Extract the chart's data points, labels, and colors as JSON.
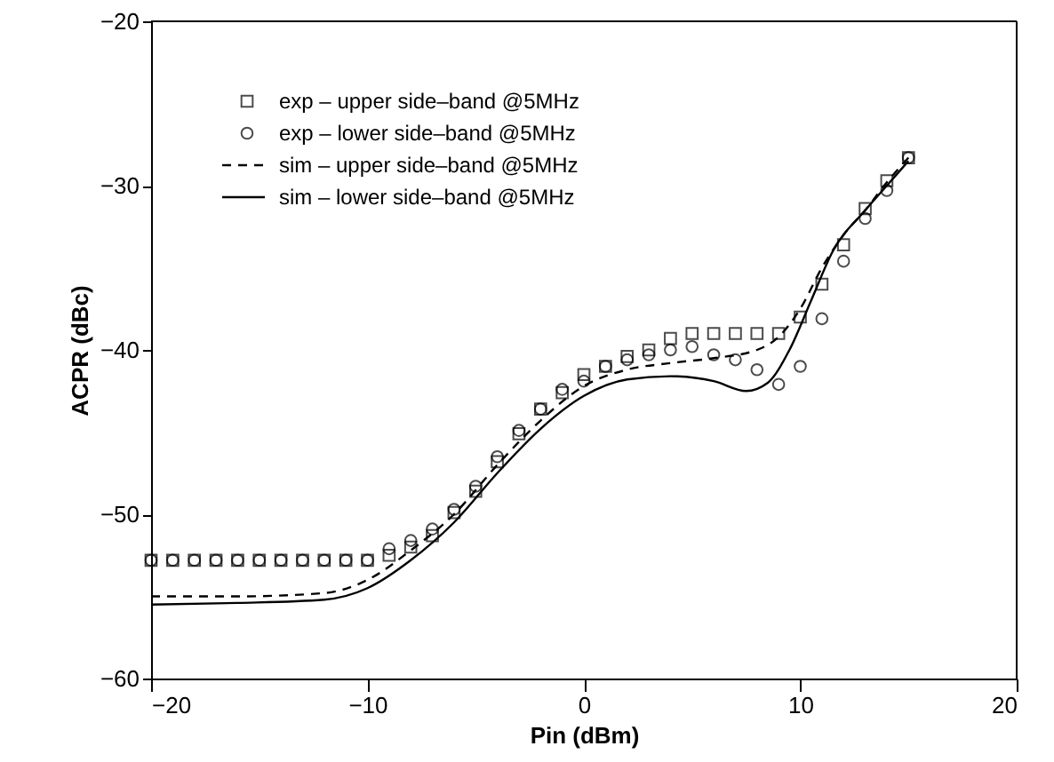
{
  "chart_data": {
    "type": "scatter",
    "xlabel": "Pin (dBm)",
    "ylabel": "ACPR (dBc)",
    "xlim": [
      -20,
      20
    ],
    "ylim": [
      -60,
      -20
    ],
    "xticks": [
      -20,
      -10,
      0,
      10,
      20
    ],
    "yticks": [
      -60,
      -50,
      -40,
      -30,
      -20
    ],
    "grid": false,
    "legend": "top left",
    "series": [
      {
        "name": "exp – upper side–band @5MHz",
        "marker": "square",
        "color": "#000000",
        "x": [
          -20,
          -19,
          -18,
          -17,
          -16,
          -15,
          -14,
          -13,
          -12,
          -11,
          -10,
          -9,
          -8,
          -7,
          -6,
          -5,
          -4,
          -3,
          -2,
          -1,
          0,
          1,
          2,
          3,
          4,
          5,
          6,
          7,
          8,
          9,
          10,
          11,
          12,
          13,
          14,
          15
        ],
        "values": [
          -52.8,
          -52.8,
          -52.8,
          -52.8,
          -52.8,
          -52.8,
          -52.8,
          -52.8,
          -52.8,
          -52.8,
          -52.8,
          -52.5,
          -52.0,
          -51.3,
          -49.9,
          -48.6,
          -46.8,
          -45.1,
          -43.6,
          -42.6,
          -41.5,
          -41.0,
          -40.4,
          -40.0,
          -39.3,
          -39.0,
          -39.0,
          -39.0,
          -39.0,
          -39.0,
          -38.0,
          -36.0,
          -33.6,
          -31.4,
          -29.7,
          -28.3
        ]
      },
      {
        "name": "exp – lower side–band @5MHz",
        "marker": "circle",
        "color": "#000000",
        "x": [
          -20,
          -19,
          -18,
          -17,
          -16,
          -15,
          -14,
          -13,
          -12,
          -11,
          -10,
          -9,
          -8,
          -7,
          -6,
          -5,
          -4,
          -3,
          -2,
          -1,
          0,
          1,
          2,
          3,
          4,
          5,
          6,
          7,
          8,
          9,
          10,
          11,
          12,
          13,
          14,
          15
        ],
        "values": [
          -52.8,
          -52.8,
          -52.8,
          -52.8,
          -52.8,
          -52.8,
          -52.8,
          -52.8,
          -52.8,
          -52.8,
          -52.8,
          -52.1,
          -51.6,
          -50.9,
          -49.7,
          -48.3,
          -46.5,
          -44.9,
          -43.6,
          -42.4,
          -41.9,
          -41.0,
          -40.6,
          -40.3,
          -40.0,
          -39.8,
          -40.3,
          -40.6,
          -41.2,
          -42.1,
          -41.0,
          -38.1,
          -34.6,
          -32.0,
          -30.3,
          -28.3
        ]
      },
      {
        "name": "sim – upper side–band @5MHz",
        "type": "line",
        "line_style": "dashed",
        "color": "#000000",
        "x": [
          -20,
          -16,
          -12,
          -10,
          -8,
          -6,
          -4,
          -2,
          0,
          2,
          4,
          6,
          8,
          9,
          10,
          11,
          12,
          13,
          14,
          15
        ],
        "values": [
          -55.0,
          -55.0,
          -54.8,
          -54.0,
          -52.2,
          -50.0,
          -47.0,
          -44.3,
          -42.2,
          -41.2,
          -40.8,
          -40.5,
          -40.0,
          -39.2,
          -37.5,
          -35.0,
          -33.0,
          -31.5,
          -29.8,
          -28.3
        ]
      },
      {
        "name": "sim – lower side–band @5MHz",
        "type": "line",
        "line_style": "solid",
        "color": "#000000",
        "x": [
          -20,
          -16,
          -12,
          -10,
          -8,
          -6,
          -4,
          -2,
          0,
          2,
          4,
          6,
          7.5,
          8.5,
          9.5,
          10.5,
          11.5,
          13,
          14,
          15
        ],
        "values": [
          -55.5,
          -55.4,
          -55.2,
          -54.5,
          -52.8,
          -50.5,
          -47.5,
          -44.8,
          -42.8,
          -41.8,
          -41.6,
          -41.9,
          -42.5,
          -42.0,
          -40.0,
          -37.0,
          -34.0,
          -31.5,
          -30.0,
          -28.5
        ]
      }
    ]
  }
}
